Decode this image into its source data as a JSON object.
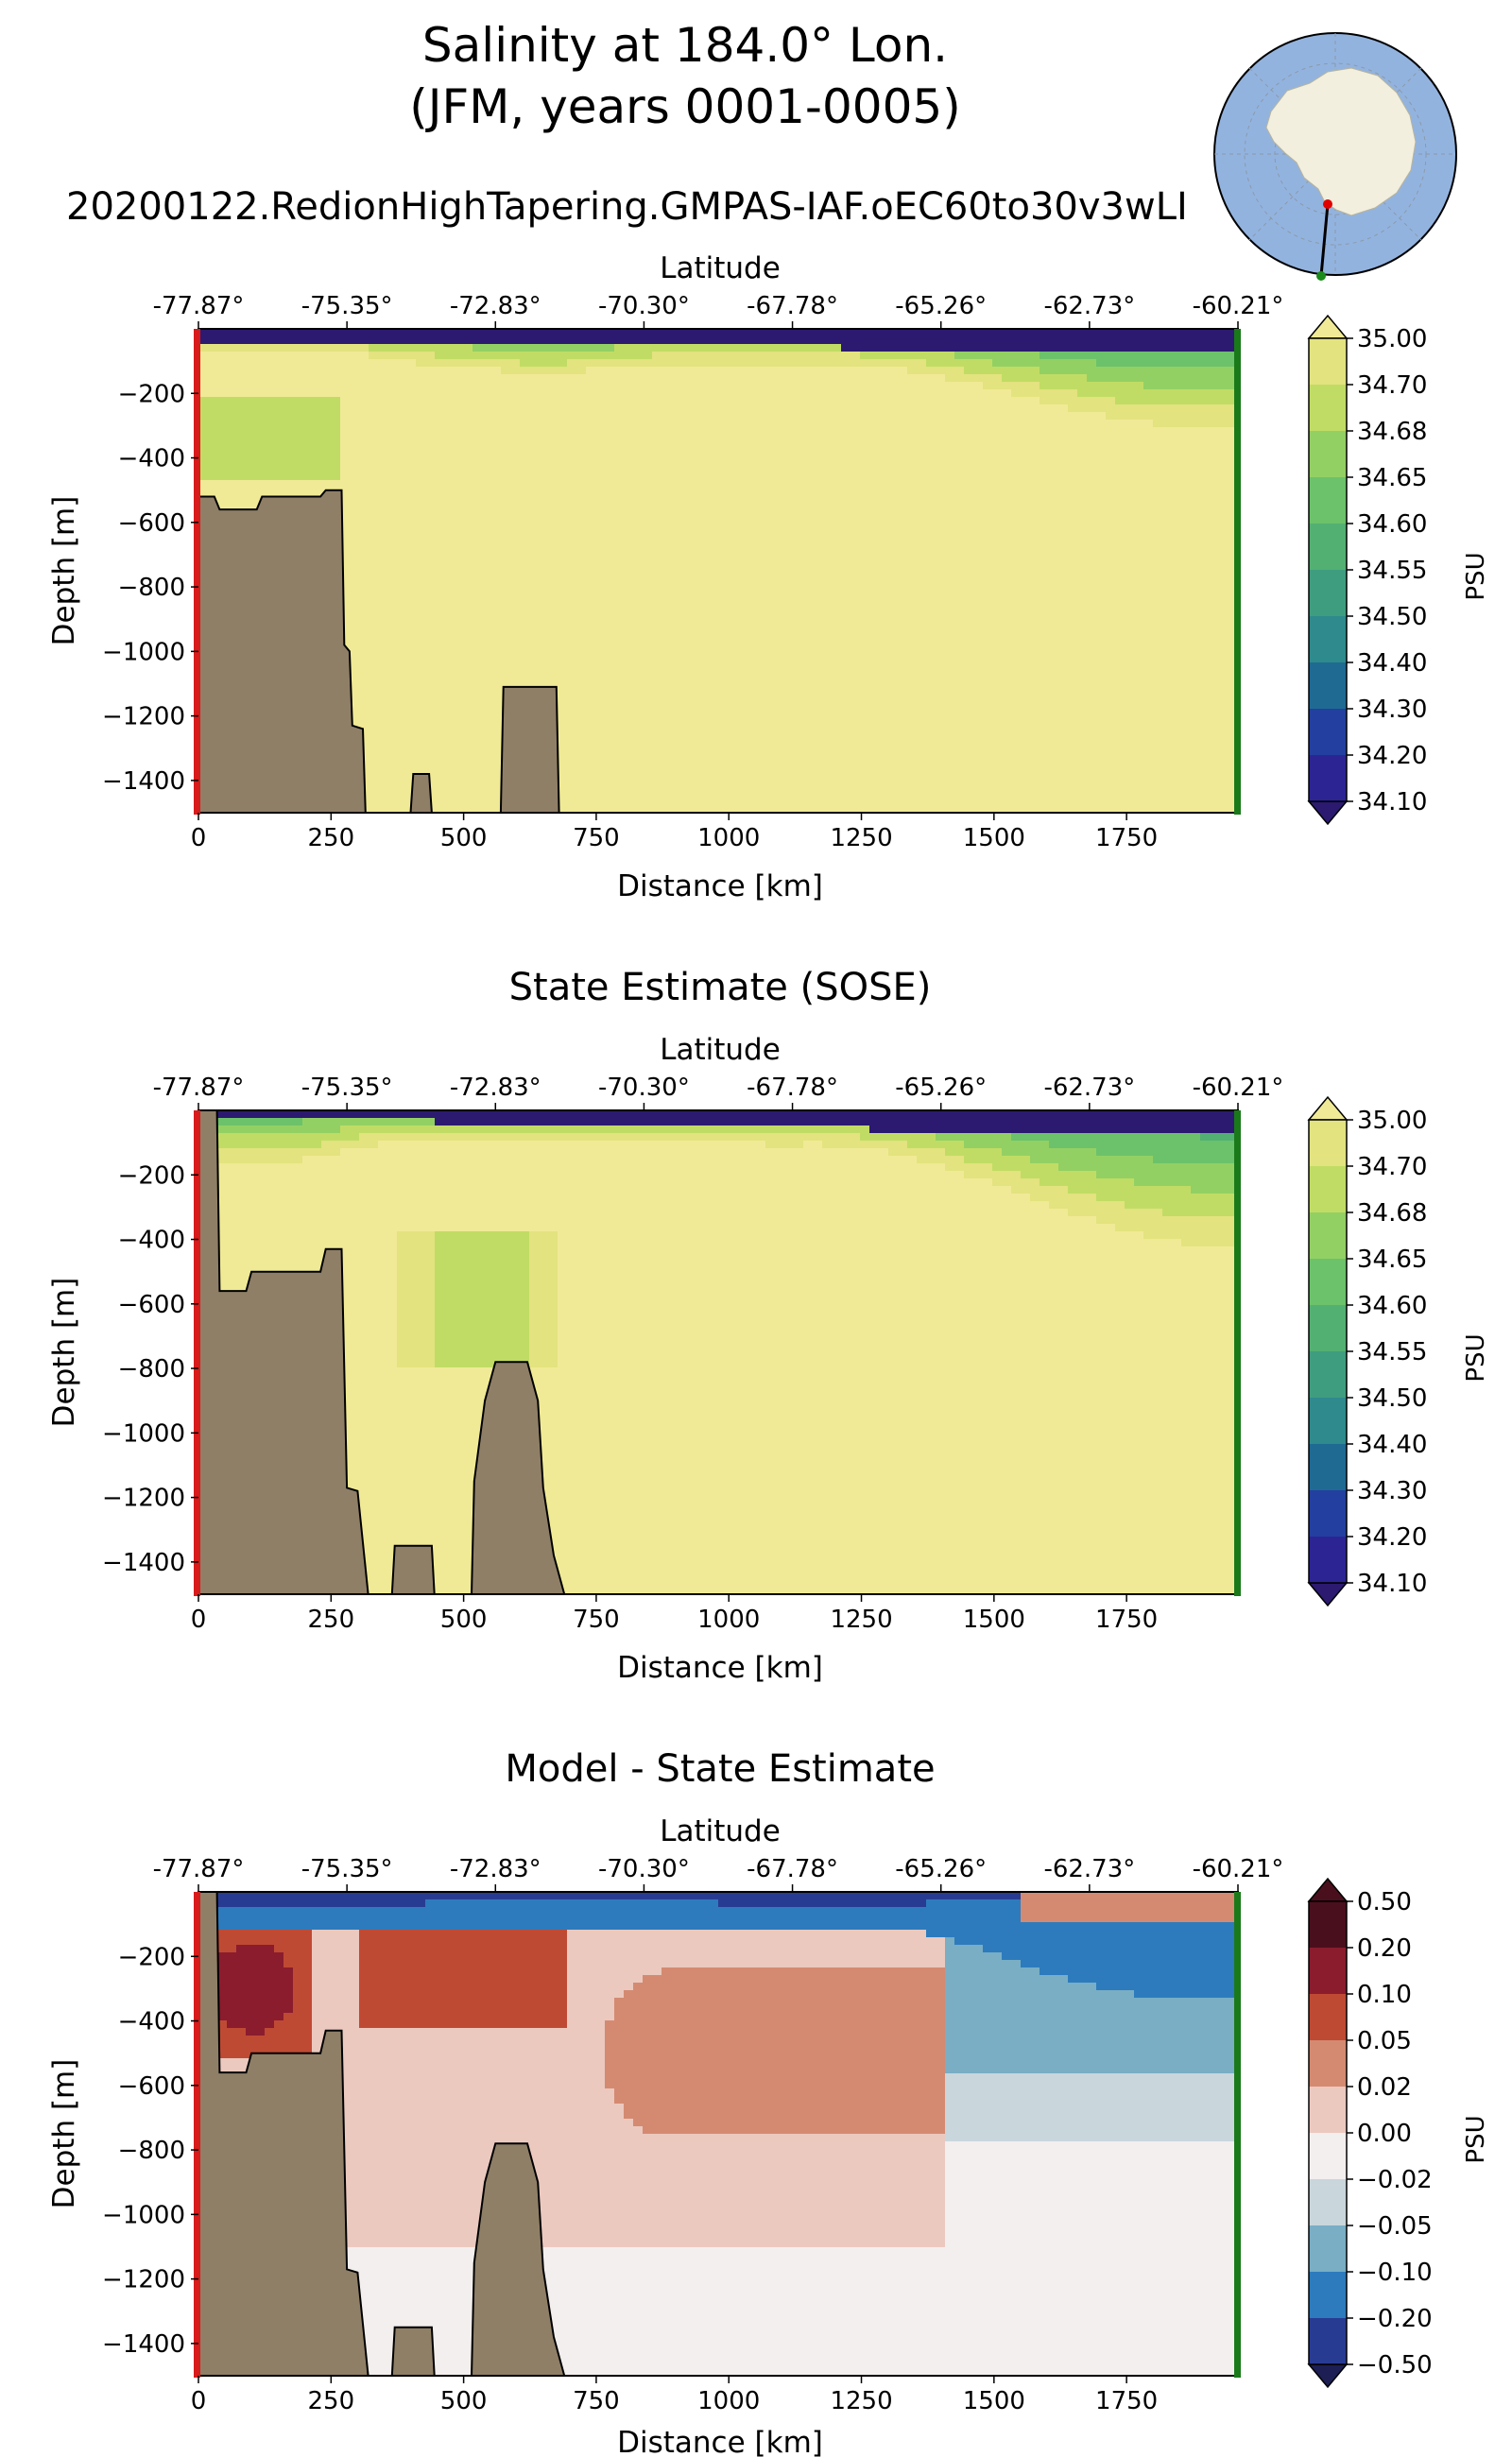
{
  "figure": {
    "title_line1": "Salinity at 184.0° Lon.",
    "title_line2": "(JFM, years 0001-0005)"
  },
  "colors": {
    "land": "#8f7f66",
    "start_marker": "#d81b1b",
    "end_marker": "#1a7a1a"
  },
  "salinity_colormap": [
    "#2b1a70",
    "#2d2494",
    "#233fa0",
    "#1f6a93",
    "#2e8a8c",
    "#3f9d7f",
    "#53b073",
    "#6cc26a",
    "#93d063",
    "#c1dc64",
    "#e3e37f",
    "#f0ea96"
  ],
  "diff_colormap": [
    "#1c1e54",
    "#283b93",
    "#2d7bbd",
    "#79aec4",
    "#c9d6dc",
    "#f3efee",
    "#ebc9bf",
    "#d48a71",
    "#bf4a34",
    "#8a1c2e",
    "#4a0f1d"
  ],
  "chart_data": [
    {
      "type": "heatmap",
      "title": "20200122.RedionHighTapering.GMPAS-IAF.oEC60to30v3wLI",
      "xlabel": "Distance [km]",
      "ylabel": "Depth [m]",
      "top_axis_label": "Latitude",
      "xlim": [
        0,
        1960
      ],
      "ylim": [
        -1500,
        0
      ],
      "x_ticks": [
        0,
        250,
        500,
        750,
        1000,
        1250,
        1500,
        1750
      ],
      "y_ticks": [
        -200,
        -400,
        -600,
        -800,
        -1000,
        -1200,
        -1400
      ],
      "lat_ticks": [
        "-77.87°",
        "-75.35°",
        "-72.83°",
        "-70.30°",
        "-67.78°",
        "-65.26°",
        "-62.73°",
        "-60.21°"
      ],
      "colorbar_label": "PSU",
      "colorbar_ticks": [
        "35.00",
        "34.70",
        "34.68",
        "34.65",
        "34.60",
        "34.55",
        "34.50",
        "34.40",
        "34.30",
        "34.20",
        "34.10"
      ],
      "bathymetry": [
        [
          0,
          -1500
        ],
        [
          0,
          -520
        ],
        [
          30,
          -520
        ],
        [
          40,
          -560
        ],
        [
          110,
          -560
        ],
        [
          120,
          -520
        ],
        [
          230,
          -520
        ],
        [
          240,
          -500
        ],
        [
          270,
          -500
        ],
        [
          275,
          -980
        ],
        [
          285,
          -1000
        ],
        [
          290,
          -1230
        ],
        [
          310,
          -1240
        ],
        [
          315,
          -1500
        ],
        [
          400,
          -1500
        ],
        [
          405,
          -1380
        ],
        [
          435,
          -1380
        ],
        [
          440,
          -1500
        ],
        [
          570,
          -1500
        ],
        [
          575,
          -1110
        ],
        [
          675,
          -1110
        ],
        [
          680,
          -1500
        ]
      ],
      "surface_layer_depth": [
        [
          0,
          -110
        ],
        [
          150,
          -80
        ],
        [
          300,
          -55
        ],
        [
          700,
          -30
        ],
        [
          1200,
          -40
        ],
        [
          1960,
          -60
        ]
      ],
      "bottom_water_salinity": 34.7
    },
    {
      "type": "heatmap",
      "title": "State Estimate (SOSE)",
      "xlabel": "Distance [km]",
      "ylabel": "Depth [m]",
      "top_axis_label": "Latitude",
      "xlim": [
        0,
        1960
      ],
      "ylim": [
        -1500,
        0
      ],
      "x_ticks": [
        0,
        250,
        500,
        750,
        1000,
        1250,
        1500,
        1750
      ],
      "y_ticks": [
        -200,
        -400,
        -600,
        -800,
        -1000,
        -1200,
        -1400
      ],
      "lat_ticks": [
        "-77.87°",
        "-75.35°",
        "-72.83°",
        "-70.30°",
        "-67.78°",
        "-65.26°",
        "-62.73°",
        "-60.21°"
      ],
      "colorbar_label": "PSU",
      "colorbar_ticks": [
        "35.00",
        "34.70",
        "34.68",
        "34.65",
        "34.60",
        "34.55",
        "34.50",
        "34.40",
        "34.30",
        "34.20",
        "34.10"
      ],
      "bathymetry": [
        [
          0,
          -1500
        ],
        [
          0,
          0
        ],
        [
          35,
          0
        ],
        [
          40,
          -560
        ],
        [
          90,
          -560
        ],
        [
          100,
          -500
        ],
        [
          230,
          -500
        ],
        [
          240,
          -430
        ],
        [
          270,
          -430
        ],
        [
          280,
          -1170
        ],
        [
          300,
          -1180
        ],
        [
          320,
          -1500
        ],
        [
          365,
          -1500
        ],
        [
          370,
          -1350
        ],
        [
          440,
          -1350
        ],
        [
          445,
          -1500
        ],
        [
          515,
          -1500
        ],
        [
          520,
          -1150
        ],
        [
          540,
          -900
        ],
        [
          560,
          -780
        ],
        [
          620,
          -780
        ],
        [
          640,
          -900
        ],
        [
          650,
          -1170
        ],
        [
          670,
          -1380
        ],
        [
          690,
          -1500
        ]
      ],
      "bottom_water_salinity": 34.7
    },
    {
      "type": "heatmap",
      "title": "Model - State Estimate",
      "xlabel": "Distance [km]",
      "ylabel": "Depth [m]",
      "top_axis_label": "Latitude",
      "xlim": [
        0,
        1960
      ],
      "ylim": [
        -1500,
        0
      ],
      "x_ticks": [
        0,
        250,
        500,
        750,
        1000,
        1250,
        1500,
        1750
      ],
      "y_ticks": [
        -200,
        -400,
        -600,
        -800,
        -1000,
        -1200,
        -1400
      ],
      "lat_ticks": [
        "-77.87°",
        "-75.35°",
        "-72.83°",
        "-70.30°",
        "-67.78°",
        "-65.26°",
        "-62.73°",
        "-60.21°"
      ],
      "colorbar_label": "PSU",
      "colorbar_ticks": [
        "0.50",
        "0.20",
        "0.10",
        "0.05",
        "0.02",
        "0.00",
        "−0.02",
        "−0.05",
        "−0.10",
        "−0.20",
        "−0.50"
      ],
      "bathymetry": [
        [
          0,
          -1500
        ],
        [
          0,
          0
        ],
        [
          35,
          0
        ],
        [
          40,
          -560
        ],
        [
          90,
          -560
        ],
        [
          100,
          -500
        ],
        [
          230,
          -500
        ],
        [
          240,
          -430
        ],
        [
          270,
          -430
        ],
        [
          280,
          -1170
        ],
        [
          300,
          -1180
        ],
        [
          320,
          -1500
        ],
        [
          365,
          -1500
        ],
        [
          370,
          -1350
        ],
        [
          440,
          -1350
        ],
        [
          445,
          -1500
        ],
        [
          515,
          -1500
        ],
        [
          520,
          -1150
        ],
        [
          540,
          -900
        ],
        [
          560,
          -780
        ],
        [
          620,
          -780
        ],
        [
          640,
          -900
        ],
        [
          650,
          -1170
        ],
        [
          670,
          -1380
        ],
        [
          690,
          -1500
        ]
      ]
    }
  ]
}
